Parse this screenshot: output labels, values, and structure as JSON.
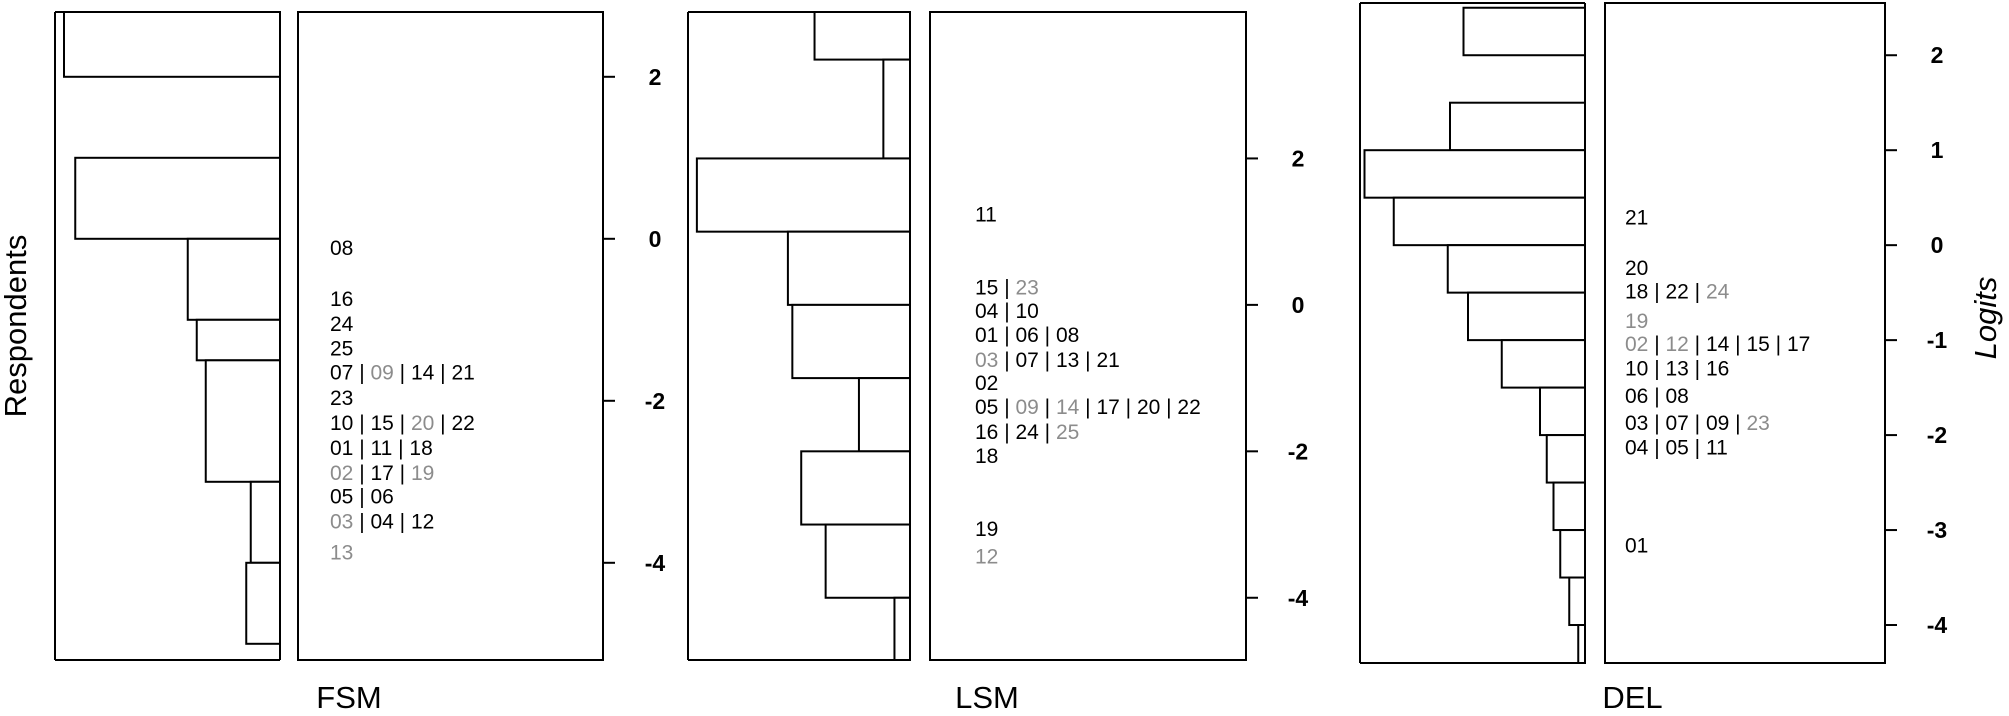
{
  "chart_data": [
    {
      "type": "wright-map",
      "title": "FSM",
      "ylabel_left": "Respondents",
      "ylim": [
        -5.2,
        2.8
      ],
      "ticks": [
        2,
        0,
        -2,
        -4
      ],
      "histogram": [
        {
          "from": 2.0,
          "to": 2.8,
          "count": 0.96
        },
        {
          "from": 0.0,
          "to": 1.0,
          "count": 0.91
        },
        {
          "from": -1.0,
          "to": 0.0,
          "count": 0.41
        },
        {
          "from": -1.5,
          "to": -1.0,
          "count": 0.37
        },
        {
          "from": -3.0,
          "to": -1.5,
          "count": 0.33
        },
        {
          "from": -4.0,
          "to": -3.0,
          "count": 0.13
        },
        {
          "from": -5.0,
          "to": -4.0,
          "count": 0.15
        }
      ],
      "item_rows": [
        {
          "y": -0.1,
          "items": [
            {
              "id": "08",
              "grey": false
            }
          ]
        },
        {
          "y": -0.73,
          "items": [
            {
              "id": "16",
              "grey": false
            }
          ]
        },
        {
          "y": -1.04,
          "items": [
            {
              "id": "24",
              "grey": false
            }
          ]
        },
        {
          "y": -1.34,
          "items": [
            {
              "id": "25",
              "grey": false
            }
          ]
        },
        {
          "y": -1.64,
          "items": [
            {
              "id": "07",
              "grey": false
            },
            {
              "id": "09",
              "grey": true
            },
            {
              "id": "14",
              "grey": false
            },
            {
              "id": "21",
              "grey": false
            }
          ]
        },
        {
          "y": -1.95,
          "items": [
            {
              "id": "23",
              "grey": false
            }
          ]
        },
        {
          "y": -2.26,
          "items": [
            {
              "id": "10",
              "grey": false
            },
            {
              "id": "15",
              "grey": false
            },
            {
              "id": "20",
              "grey": true
            },
            {
              "id": "22",
              "grey": false
            }
          ]
        },
        {
          "y": -2.57,
          "items": [
            {
              "id": "01",
              "grey": false
            },
            {
              "id": "11",
              "grey": false
            },
            {
              "id": "18",
              "grey": false
            }
          ]
        },
        {
          "y": -2.88,
          "items": [
            {
              "id": "02",
              "grey": true
            },
            {
              "id": "17",
              "grey": false
            },
            {
              "id": "19",
              "grey": true
            }
          ]
        },
        {
          "y": -3.17,
          "items": [
            {
              "id": "05",
              "grey": false
            },
            {
              "id": "06",
              "grey": false
            }
          ]
        },
        {
          "y": -3.48,
          "items": [
            {
              "id": "03",
              "grey": true
            },
            {
              "id": "04",
              "grey": false
            },
            {
              "id": "12",
              "grey": false
            }
          ]
        },
        {
          "y": -3.86,
          "items": [
            {
              "id": "13",
              "grey": true
            }
          ]
        }
      ]
    },
    {
      "type": "wright-map",
      "title": "LSM",
      "ylim": [
        -4.85,
        4.0
      ],
      "ticks": [
        2,
        0,
        -2,
        -4
      ],
      "histogram": [
        {
          "from": 3.35,
          "to": 4.0,
          "count": 0.43
        },
        {
          "from": 2.0,
          "to": 3.35,
          "count": 0.12
        },
        {
          "from": 1.0,
          "to": 2.0,
          "count": 0.96
        },
        {
          "from": 0.0,
          "to": 1.0,
          "count": 0.55
        },
        {
          "from": -1.0,
          "to": 0.0,
          "count": 0.53
        },
        {
          "from": -2.0,
          "to": -1.0,
          "count": 0.23
        },
        {
          "from": -3.0,
          "to": -2.0,
          "count": 0.49
        },
        {
          "from": -4.0,
          "to": -3.0,
          "count": 0.38
        },
        {
          "from": -4.85,
          "to": -4.0,
          "count": 0.07
        }
      ],
      "item_rows": [
        {
          "y": 1.25,
          "items": [
            {
              "id": "11",
              "grey": false
            }
          ]
        },
        {
          "y": 0.25,
          "items": [
            {
              "id": "15",
              "grey": false
            },
            {
              "id": "23",
              "grey": true
            }
          ]
        },
        {
          "y": -0.07,
          "items": [
            {
              "id": "04",
              "grey": false
            },
            {
              "id": "10",
              "grey": false
            }
          ]
        },
        {
          "y": -0.4,
          "items": [
            {
              "id": "01",
              "grey": false
            },
            {
              "id": "06",
              "grey": false
            },
            {
              "id": "08",
              "grey": false
            }
          ]
        },
        {
          "y": -0.74,
          "items": [
            {
              "id": "03",
              "grey": true
            },
            {
              "id": "07",
              "grey": false
            },
            {
              "id": "13",
              "grey": false
            },
            {
              "id": "21",
              "grey": false
            }
          ]
        },
        {
          "y": -1.05,
          "items": [
            {
              "id": "02",
              "grey": false
            }
          ]
        },
        {
          "y": -1.38,
          "items": [
            {
              "id": "05",
              "grey": false
            },
            {
              "id": "09",
              "grey": true
            },
            {
              "id": "14",
              "grey": true
            },
            {
              "id": "17",
              "grey": false
            },
            {
              "id": "20",
              "grey": false
            },
            {
              "id": "22",
              "grey": false
            }
          ]
        },
        {
          "y": -1.72,
          "items": [
            {
              "id": "16",
              "grey": false
            },
            {
              "id": "24",
              "grey": false
            },
            {
              "id": "25",
              "grey": true
            }
          ]
        },
        {
          "y": -2.05,
          "items": [
            {
              "id": "18",
              "grey": false
            }
          ]
        },
        {
          "y": -3.05,
          "items": [
            {
              "id": "19",
              "grey": false
            }
          ]
        },
        {
          "y": -3.42,
          "items": [
            {
              "id": "12",
              "grey": true
            }
          ]
        }
      ]
    },
    {
      "type": "wright-map",
      "title": "DEL",
      "ylabel_right": "Logits",
      "ylim": [
        -4.4,
        2.55
      ],
      "ticks": [
        2,
        1,
        0,
        -1,
        -2,
        -3,
        -4
      ],
      "histogram": [
        {
          "from": 2.0,
          "to": 2.5,
          "count": 0.54
        },
        {
          "from": 1.5,
          "to": 2.0,
          "count": 0.0
        },
        {
          "from": 1.0,
          "to": 1.5,
          "count": 0.6
        },
        {
          "from": 0.5,
          "to": 1.0,
          "count": 0.98
        },
        {
          "from": 0.0,
          "to": 0.5,
          "count": 0.85
        },
        {
          "from": -0.5,
          "to": 0.0,
          "count": 0.61
        },
        {
          "from": -1.0,
          "to": -0.5,
          "count": 0.52
        },
        {
          "from": -1.5,
          "to": -1.0,
          "count": 0.37
        },
        {
          "from": -2.0,
          "to": -1.5,
          "count": 0.2
        },
        {
          "from": -2.5,
          "to": -2.0,
          "count": 0.17
        },
        {
          "from": -3.0,
          "to": -2.5,
          "count": 0.14
        },
        {
          "from": -3.5,
          "to": -3.0,
          "count": 0.11
        },
        {
          "from": -4.0,
          "to": -3.5,
          "count": 0.07
        },
        {
          "from": -4.4,
          "to": -4.0,
          "count": 0.03
        }
      ],
      "item_rows": [
        {
          "y": 0.3,
          "items": [
            {
              "id": "21",
              "grey": false
            }
          ]
        },
        {
          "y": -0.23,
          "items": [
            {
              "id": "20",
              "grey": false
            }
          ]
        },
        {
          "y": -0.48,
          "items": [
            {
              "id": "18",
              "grey": false
            },
            {
              "id": "22",
              "grey": false
            },
            {
              "id": "24",
              "grey": true
            }
          ]
        },
        {
          "y": -0.79,
          "items": [
            {
              "id": "19",
              "grey": true
            }
          ]
        },
        {
          "y": -1.03,
          "items": [
            {
              "id": "02",
              "grey": true
            },
            {
              "id": "12",
              "grey": true
            },
            {
              "id": "14",
              "grey": false
            },
            {
              "id": "15",
              "grey": false
            },
            {
              "id": "17",
              "grey": false
            }
          ]
        },
        {
          "y": -1.29,
          "items": [
            {
              "id": "10",
              "grey": false
            },
            {
              "id": "13",
              "grey": false
            },
            {
              "id": "16",
              "grey": false
            }
          ]
        },
        {
          "y": -1.58,
          "items": [
            {
              "id": "06",
              "grey": false
            },
            {
              "id": "08",
              "grey": false
            }
          ]
        },
        {
          "y": -1.86,
          "items": [
            {
              "id": "03",
              "grey": false
            },
            {
              "id": "07",
              "grey": false
            },
            {
              "id": "09",
              "grey": false
            },
            {
              "id": "23",
              "grey": true
            }
          ]
        },
        {
          "y": -2.12,
          "items": [
            {
              "id": "04",
              "grey": false
            },
            {
              "id": "05",
              "grey": false
            },
            {
              "id": "11",
              "grey": false
            }
          ]
        },
        {
          "y": -3.15,
          "items": [
            {
              "id": "01",
              "grey": false
            }
          ]
        }
      ]
    }
  ]
}
